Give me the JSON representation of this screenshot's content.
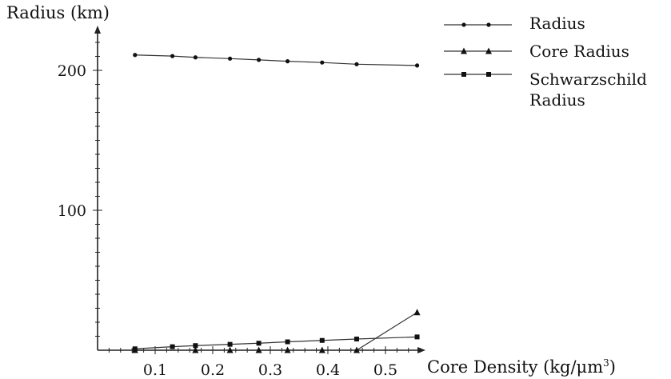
{
  "chart_data": {
    "type": "line",
    "title": "",
    "ylabel": "Radius (km)",
    "xlabel": "Core Density (kg/μm",
    "xlabel_sup": "3",
    "xlabel_close": ")",
    "xlim": [
      0,
      0.57
    ],
    "ylim": [
      0,
      230
    ],
    "x_ticks": [
      0.1,
      0.2,
      0.3,
      0.4,
      0.5
    ],
    "x_tick_labels": [
      "0.1",
      "0.2",
      "0.3",
      "0.4",
      "0.5"
    ],
    "y_ticks": [
      100,
      200
    ],
    "y_tick_labels": [
      "100",
      "200"
    ],
    "grid": false,
    "legend_position": "top-right",
    "series": [
      {
        "name": "Radius",
        "marker": "dot",
        "x": [
          0.065,
          0.13,
          0.17,
          0.23,
          0.28,
          0.33,
          0.39,
          0.45,
          0.555
        ],
        "y": [
          211,
          210.2,
          209.3,
          208.4,
          207.5,
          206.5,
          205.6,
          204.4,
          203.5
        ]
      },
      {
        "name": "Core Radius",
        "marker": "triangle",
        "x": [
          0.065,
          0.17,
          0.23,
          0.28,
          0.33,
          0.39,
          0.45,
          0.555
        ],
        "y": [
          0,
          0,
          0,
          0,
          0,
          0,
          0,
          27
        ]
      },
      {
        "name": "Schwarzschild Radius",
        "name_line1": "Schwarzschild",
        "name_line2": "Radius",
        "marker": "square",
        "x": [
          0.065,
          0.13,
          0.17,
          0.23,
          0.28,
          0.33,
          0.39,
          0.45,
          0.555
        ],
        "y": [
          1,
          2.5,
          3.3,
          4.2,
          5,
          6,
          7,
          8,
          9.5
        ]
      }
    ]
  }
}
